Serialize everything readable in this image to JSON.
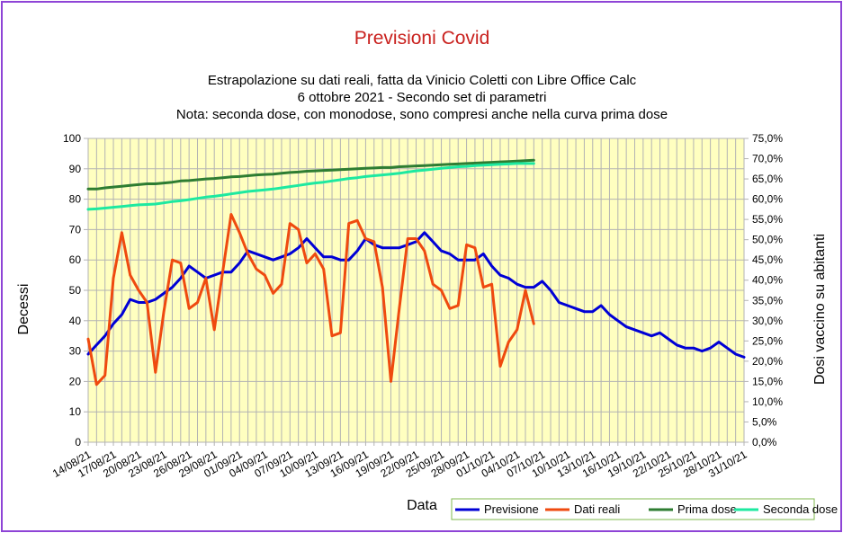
{
  "chart_data": {
    "type": "line",
    "title": "Previsioni Covid",
    "subtitle_lines": [
      "Estrapolazione su dati reali, fatta da Vinicio Coletti con Libre Office Calc",
      "6 ottobre 2021 - Secondo set di parametri",
      "Nota: seconda dose, con monodose, sono compresi anche nella curva prima dose"
    ],
    "xlabel": "Data",
    "ylabel": "Decessi",
    "y2label": "Dosi vaccino su abitanti",
    "ylim": [
      0,
      100
    ],
    "y_ticks": [
      "0",
      "10",
      "20",
      "30",
      "40",
      "50",
      "60",
      "70",
      "80",
      "90",
      "100"
    ],
    "y2lim": [
      0,
      75
    ],
    "y2_ticks": [
      "0,0%",
      "5,0%",
      "10,0%",
      "15,0%",
      "20,0%",
      "25,0%",
      "30,0%",
      "35,0%",
      "40,0%",
      "45,0%",
      "50,0%",
      "55,0%",
      "60,0%",
      "65,0%",
      "70,0%",
      "75,0%"
    ],
    "x_start": "14/08/21",
    "x_end": "31/10/21",
    "x_tick_labels": [
      "14/08/21",
      "17/08/21",
      "20/08/21",
      "23/08/21",
      "26/08/21",
      "29/08/21",
      "01/09/21",
      "04/09/21",
      "07/09/21",
      "10/09/21",
      "13/09/21",
      "16/09/21",
      "19/09/21",
      "22/09/21",
      "25/09/21",
      "28/09/21",
      "01/10/21",
      "04/10/21",
      "07/10/21",
      "10/10/21",
      "13/10/21",
      "16/10/21",
      "19/10/21",
      "22/10/21",
      "25/10/21",
      "28/10/21",
      "31/10/21"
    ],
    "grid": true,
    "plot_background": "#ffffc0",
    "legend_position": "bottom-right",
    "series": [
      {
        "name": "Previsione",
        "axis": "left",
        "color": "#0000d6",
        "values": [
          29,
          32,
          35,
          39,
          42,
          47,
          46,
          46,
          47,
          49,
          51,
          54,
          58,
          56,
          54,
          55,
          56,
          56,
          59,
          63,
          62,
          61,
          60,
          61,
          62,
          64,
          67,
          64,
          61,
          61,
          60,
          60,
          63,
          67,
          65,
          64,
          64,
          64,
          65,
          66,
          69,
          66,
          63,
          62,
          60,
          60,
          60,
          62,
          58,
          55,
          54,
          52,
          51,
          51,
          53,
          50,
          46,
          45,
          44,
          43,
          43,
          45,
          42,
          40,
          38,
          37,
          36,
          35,
          36,
          34,
          32,
          31,
          31,
          30,
          31,
          33,
          31,
          29,
          28
        ]
      },
      {
        "name": "Dati reali",
        "axis": "left",
        "color": "#ef4a0f",
        "values": [
          34,
          19,
          22,
          54,
          69,
          55,
          50,
          46,
          23,
          43,
          60,
          59,
          44,
          46,
          54,
          37,
          56,
          75,
          69,
          62,
          57,
          55,
          49,
          52,
          72,
          70,
          59,
          62,
          57,
          35,
          36,
          72,
          73,
          67,
          66,
          51,
          20,
          44,
          67,
          67,
          63,
          52,
          50,
          44,
          45,
          65,
          64,
          51,
          52,
          25,
          33,
          37,
          50,
          39
        ]
      },
      {
        "name": "Prima dose",
        "axis": "right",
        "color": "#2e7d32",
        "values": [
          62.5,
          62.5,
          62.8,
          63.0,
          63.2,
          63.4,
          63.6,
          63.8,
          63.8,
          64.0,
          64.2,
          64.5,
          64.6,
          64.8,
          65.0,
          65.1,
          65.3,
          65.5,
          65.6,
          65.8,
          66.0,
          66.1,
          66.2,
          66.4,
          66.6,
          66.7,
          66.9,
          67.0,
          67.1,
          67.2,
          67.3,
          67.4,
          67.5,
          67.6,
          67.7,
          67.8,
          67.8,
          68.0,
          68.1,
          68.2,
          68.3,
          68.4,
          68.5,
          68.6,
          68.7,
          68.8,
          68.9,
          69.0,
          69.1,
          69.2,
          69.3,
          69.4,
          69.5,
          69.6
        ]
      },
      {
        "name": "Seconda dose",
        "axis": "right",
        "color": "#1de9a0",
        "values": [
          57.5,
          57.6,
          57.8,
          58.0,
          58.2,
          58.4,
          58.6,
          58.7,
          58.8,
          59.1,
          59.4,
          59.6,
          59.9,
          60.2,
          60.5,
          60.7,
          61.0,
          61.3,
          61.6,
          61.9,
          62.1,
          62.3,
          62.5,
          62.8,
          63.1,
          63.4,
          63.7,
          64.0,
          64.2,
          64.5,
          64.8,
          65.1,
          65.3,
          65.6,
          65.8,
          66.0,
          66.2,
          66.4,
          66.7,
          67.0,
          67.2,
          67.4,
          67.6,
          67.8,
          68.0,
          68.1,
          68.3,
          68.4,
          68.5,
          68.6,
          68.7,
          68.8,
          68.8,
          68.8
        ]
      }
    ]
  }
}
